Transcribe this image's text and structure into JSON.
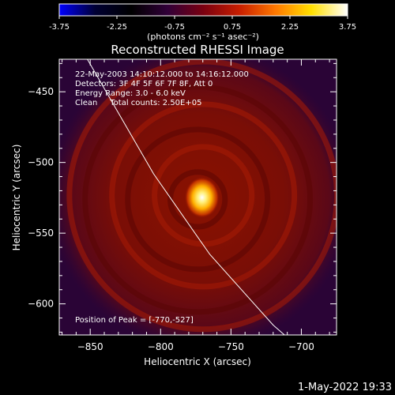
{
  "chart_data": {
    "type": "heatmap",
    "title": "Reconstructed RHESSI Image",
    "xlabel": "Heliocentric X (arcsec)",
    "ylabel": "Heliocentric Y (arcsec)",
    "xlim": [
      -872,
      -675
    ],
    "ylim": [
      -622,
      -427
    ],
    "xticks": [
      -850,
      -800,
      -750,
      -700
    ],
    "yticks": [
      -450,
      -500,
      -550,
      -600
    ],
    "colorbar": {
      "label": "(photons cm⁻² s⁻¹ asec⁻²)",
      "range": [
        -3.75,
        3.75
      ],
      "ticks": [
        -3.75,
        -2.25,
        -0.75,
        0.75,
        2.25,
        3.75
      ],
      "tick_labels": [
        "-3.75",
        "-2.25",
        "-0.75",
        "0.75",
        "2.25",
        "3.75"
      ],
      "colormap": [
        "#0000ff",
        "#000033",
        "#000000",
        "#300038",
        "#7a0010",
        "#c81e00",
        "#ff7800",
        "#ffe000",
        "#ffffff"
      ]
    },
    "annotations": [
      "22-May-2003 14:10:12.000 to 14:16:12.000",
      "Detectors: 3F 4F 5F 6F 7F 8F, Att 0",
      "Energy Range: 3.0 - 6.0 keV",
      "Clean     Total counts: 2.50E+05"
    ],
    "peak_label": "Position of Peak = [-770,-527]",
    "peak": {
      "x": -770,
      "y": -527,
      "value": 3.75
    },
    "disk_center": {
      "x": -772,
      "y": -525
    },
    "disk_radius": 108,
    "limb_curve": [
      {
        "x": -852,
        "y": -427
      },
      {
        "x": -805,
        "y": -508
      },
      {
        "x": -765,
        "y": -565
      },
      {
        "x": -720,
        "y": -615
      },
      {
        "x": -712,
        "y": -622
      }
    ]
  },
  "footer": {
    "date_label": "1-May-2022 19:33"
  }
}
